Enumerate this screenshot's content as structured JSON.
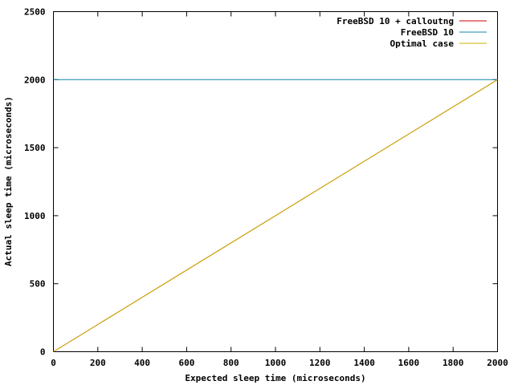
{
  "chart_data": {
    "type": "line",
    "title": "",
    "xlabel": "Expected sleep time (microseconds)",
    "ylabel": "Actual sleep time (microseconds)",
    "xlim": [
      0,
      2000
    ],
    "ylim": [
      0,
      2500
    ],
    "xticks": [
      0,
      200,
      400,
      600,
      800,
      1000,
      1200,
      1400,
      1600,
      1800,
      2000
    ],
    "yticks": [
      0,
      500,
      1000,
      1500,
      2000,
      2500
    ],
    "grid": false,
    "legend_position": "top-right",
    "series": [
      {
        "name": "FreeBSD 10 + calloutng",
        "color": "#cc0000",
        "x": [
          0,
          2000
        ],
        "y": [
          0,
          2000
        ]
      },
      {
        "name": "FreeBSD 10",
        "color": "#0f8aa8",
        "x": [
          0,
          2000
        ],
        "y": [
          2000,
          2000
        ]
      },
      {
        "name": "Optimal case",
        "color": "#c8b400",
        "x": [
          0,
          2000
        ],
        "y": [
          0,
          2000
        ]
      }
    ]
  }
}
